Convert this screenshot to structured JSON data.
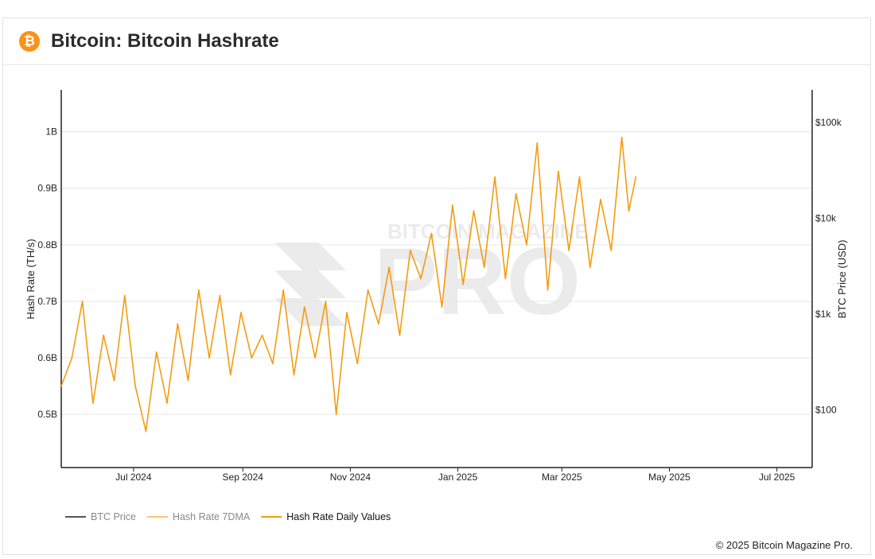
{
  "header": {
    "logo_glyph": "₿",
    "title": "Bitcoin: Bitcoin Hashrate"
  },
  "watermark": {
    "brand": "BITCOIN MAGAZINE",
    "word": "PRO"
  },
  "footer": {
    "copyright": "© 2025 Bitcoin Magazine Pro."
  },
  "colors": {
    "hashrate_daily": "#f39c12",
    "hashrate_7dma": "#f8c471",
    "btc_price": "#555555",
    "grid": "#e6e6e6",
    "axis": "#222222"
  },
  "chart_data": {
    "type": "line",
    "title": "Bitcoin: Bitcoin Hashrate",
    "x_axis": {
      "ticks": [
        "Jul 2024",
        "Sep 2024",
        "Nov 2024",
        "Jan 2025",
        "Mar 2025",
        "May 2025",
        "Jul 2025"
      ],
      "range": [
        "2024-05-21",
        "2025-07-21"
      ]
    },
    "y_axis_left": {
      "label": "Hash Rate (TH/s)",
      "ticks": [
        "0.5B",
        "0.6B",
        "0.7B",
        "0.8B",
        "0.9B",
        "1B"
      ],
      "tick_values": [
        0.5,
        0.6,
        0.7,
        0.8,
        0.9,
        1.0
      ],
      "range": [
        0.406,
        1.074
      ],
      "unit": "billion TH/s"
    },
    "y_axis_right": {
      "label": "BTC Price (USD)",
      "scale": "log",
      "ticks": [
        "$100",
        "$1k",
        "$10k",
        "$100k"
      ],
      "tick_values": [
        100,
        1000,
        10000,
        100000
      ],
      "range": [
        25,
        220000
      ]
    },
    "grid": true,
    "legend": {
      "placement": "bottom-left",
      "items": [
        {
          "name": "BTC Price",
          "color": "#555555",
          "active": false
        },
        {
          "name": "Hash Rate 7DMA",
          "color": "#f8c471",
          "active": false
        },
        {
          "name": "Hash Rate Daily Values",
          "color": "#f39c12",
          "active": true
        }
      ]
    },
    "series": [
      {
        "name": "Hash Rate Daily Values",
        "color": "#f39c12",
        "x": [
          "2024-05-21",
          "2024-05-27",
          "2024-06-02",
          "2024-06-08",
          "2024-06-14",
          "2024-06-20",
          "2024-06-26",
          "2024-07-02",
          "2024-07-08",
          "2024-07-14",
          "2024-07-20",
          "2024-07-26",
          "2024-08-01",
          "2024-08-07",
          "2024-08-13",
          "2024-08-19",
          "2024-08-25",
          "2024-08-31",
          "2024-09-06",
          "2024-09-12",
          "2024-09-18",
          "2024-09-24",
          "2024-09-30",
          "2024-10-06",
          "2024-10-12",
          "2024-10-18",
          "2024-10-24",
          "2024-10-30",
          "2024-11-05",
          "2024-11-11",
          "2024-11-17",
          "2024-11-23",
          "2024-11-29",
          "2024-12-05",
          "2024-12-11",
          "2024-12-17",
          "2024-12-23",
          "2024-12-29",
          "2025-01-04",
          "2025-01-10",
          "2025-01-16",
          "2025-01-22",
          "2025-01-28",
          "2025-02-03",
          "2025-02-09",
          "2025-02-15",
          "2025-02-21",
          "2025-02-27",
          "2025-03-05",
          "2025-03-11",
          "2025-03-17",
          "2025-03-23",
          "2025-03-29",
          "2025-04-04",
          "2025-04-08",
          "2025-04-12"
        ],
        "values": [
          0.55,
          0.6,
          0.7,
          0.52,
          0.64,
          0.56,
          0.71,
          0.55,
          0.47,
          0.61,
          0.52,
          0.66,
          0.56,
          0.72,
          0.6,
          0.71,
          0.57,
          0.68,
          0.6,
          0.64,
          0.59,
          0.72,
          0.57,
          0.69,
          0.6,
          0.7,
          0.5,
          0.68,
          0.59,
          0.72,
          0.66,
          0.76,
          0.64,
          0.79,
          0.74,
          0.82,
          0.69,
          0.87,
          0.73,
          0.86,
          0.76,
          0.92,
          0.74,
          0.89,
          0.8,
          0.98,
          0.72,
          0.93,
          0.79,
          0.92,
          0.76,
          0.88,
          0.79,
          0.99,
          0.86,
          0.92
        ]
      }
    ]
  }
}
